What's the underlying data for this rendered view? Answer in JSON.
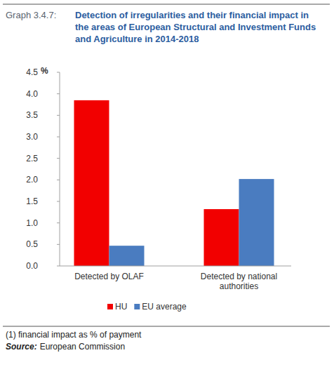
{
  "chart_data": {
    "type": "bar",
    "label": "Graph 3.4.7:",
    "title": "Detection of irregularities and their financial impact in the areas of European Structural and Investment Funds and Agriculture in 2014-2018",
    "y_label": "%",
    "categories": [
      "Detected by OLAF",
      "Detected by national authorities"
    ],
    "series": [
      {
        "name": "HU",
        "color": "#f20000",
        "values": [
          3.85,
          1.32
        ]
      },
      {
        "name": "EU average",
        "color": "#4a7cc0",
        "values": [
          0.47,
          2.02
        ]
      }
    ],
    "ylim": [
      0,
      4.5
    ],
    "yticks": [
      {
        "value": 0,
        "label": "0.0"
      },
      0.5,
      {
        "value": 1,
        "label": "1.0"
      },
      1.5,
      {
        "value": 2,
        "label": "2.0"
      },
      2.5,
      {
        "value": 3,
        "label": "3.0"
      },
      3.5,
      {
        "value": 4,
        "label": "4.0"
      },
      4.5
    ],
    "grid": false,
    "legend": "bottom",
    "footnote": "(1) financial impact as % of payment",
    "source": {
      "label": "Source:",
      "text": "European Commission"
    }
  }
}
